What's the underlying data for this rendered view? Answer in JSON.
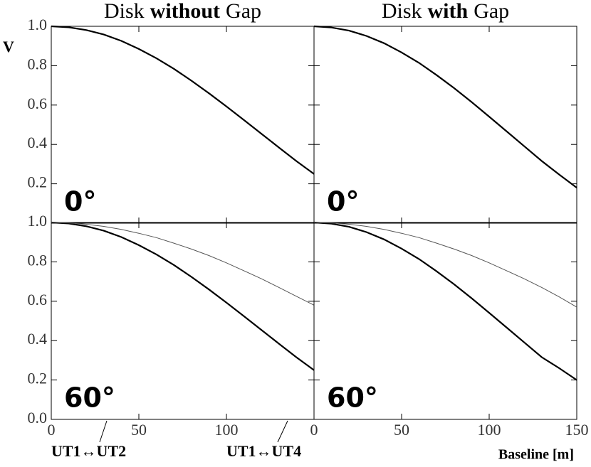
{
  "chart_data": [
    {
      "type": "line",
      "title_parts": [
        "Disk",
        "without",
        "Gap"
      ],
      "y_label": "V",
      "panel_label": "0°",
      "x": [
        0,
        10,
        20,
        30,
        40,
        50,
        60,
        70,
        80,
        90,
        100,
        110,
        120,
        130,
        140,
        150
      ],
      "series": [
        {
          "color": "#000000",
          "values": [
            1,
            0.995,
            0.981,
            0.958,
            0.926,
            0.885,
            0.838,
            0.784,
            0.724,
            0.66,
            0.593,
            0.524,
            0.454,
            0.384,
            0.315,
            0.25
          ]
        }
      ],
      "xlim": [
        0,
        150
      ],
      "ylim": [
        0,
        1
      ],
      "yticks": [
        0.2,
        0.4,
        0.6,
        0.8,
        {
          "value": 1,
          "label": "1.0"
        }
      ]
    },
    {
      "type": "line",
      "title_parts": [
        "Disk",
        "with",
        "Gap"
      ],
      "panel_label": "0°",
      "x": [
        0,
        10,
        20,
        30,
        40,
        50,
        60,
        70,
        80,
        90,
        100,
        110,
        120,
        130,
        140,
        150
      ],
      "series": [
        {
          "color": "#000000",
          "values": [
            1,
            0.994,
            0.978,
            0.951,
            0.914,
            0.867,
            0.814,
            0.752,
            0.686,
            0.615,
            0.541,
            0.466,
            0.391,
            0.316,
            0.247,
            0.18
          ]
        }
      ],
      "xlim": [
        0,
        150
      ],
      "ylim": [
        0,
        1
      ]
    },
    {
      "type": "line",
      "panel_label": "60°",
      "annotations": [
        "UT1↔UT2",
        "UT1↔UT4"
      ],
      "x": [
        0,
        10,
        20,
        30,
        40,
        50,
        60,
        70,
        80,
        90,
        100,
        110,
        120,
        130,
        140,
        150
      ],
      "series": [
        {
          "color": "#000000",
          "values": [
            1,
            0.995,
            0.981,
            0.958,
            0.926,
            0.885,
            0.838,
            0.784,
            0.724,
            0.66,
            0.593,
            0.524,
            0.454,
            0.384,
            0.315,
            0.25
          ]
        },
        {
          "color": "#555555",
          "values": [
            1,
            0.998,
            0.991,
            0.98,
            0.965,
            0.945,
            0.923,
            0.895,
            0.865,
            0.832,
            0.795,
            0.755,
            0.714,
            0.67,
            0.625,
            0.58
          ]
        }
      ],
      "xlim": [
        0,
        150
      ],
      "ylim": [
        0,
        1
      ],
      "xticks": [
        0,
        50,
        100
      ],
      "yticks": [
        {
          "value": 0,
          "label": "0.0"
        },
        0.2,
        0.4,
        0.6,
        0.8,
        {
          "value": 1,
          "label": "1.0"
        }
      ]
    },
    {
      "type": "line",
      "panel_label": "60°",
      "x_label": "Baseline [m]",
      "x": [
        0,
        10,
        20,
        30,
        40,
        50,
        60,
        70,
        80,
        90,
        100,
        110,
        120,
        130,
        140,
        150
      ],
      "series": [
        {
          "color": "#000000",
          "values": [
            1,
            0.994,
            0.978,
            0.951,
            0.914,
            0.867,
            0.814,
            0.752,
            0.686,
            0.615,
            0.541,
            0.466,
            0.391,
            0.316,
            0.26,
            0.2
          ]
        },
        {
          "color": "#555555",
          "values": [
            1,
            0.998,
            0.991,
            0.98,
            0.965,
            0.945,
            0.923,
            0.895,
            0.865,
            0.832,
            0.795,
            0.755,
            0.714,
            0.67,
            0.622,
            0.57
          ]
        }
      ],
      "xlim": [
        0,
        150
      ],
      "ylim": [
        0,
        1
      ],
      "xticks": [
        0,
        50,
        100,
        150
      ]
    }
  ]
}
